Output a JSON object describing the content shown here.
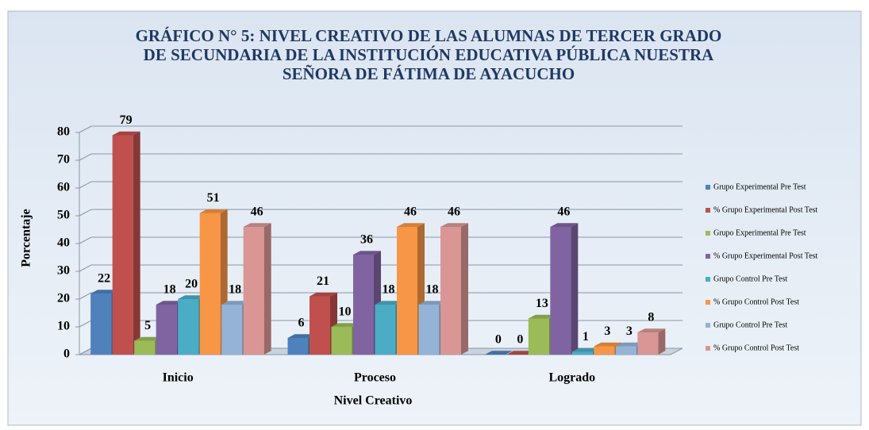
{
  "chart_data": {
    "type": "bar3d",
    "title": [
      "GRÁFICO N° 5: NIVEL CREATIVO DE LAS ALUMNAS DE TERCER GRADO",
      "DE SECUNDARIA DE LA INSTITUCIÓN EDUCATIVA PÚBLICA NUESTRA",
      "SEÑORA DE FÁTIMA DE AYACUCHO"
    ],
    "ylabel": "Porcentaje",
    "xlabel": "Nivel Creativo",
    "categories": [
      "Inicio",
      "Proceso",
      "Logrado"
    ],
    "series": [
      {
        "name": "Grupo Experimental Pre Test",
        "color": "#4f81bd",
        "values": [
          22,
          6,
          0
        ]
      },
      {
        "name": "% Grupo Experimental Post Test",
        "color": "#c0504d",
        "values": [
          79,
          21,
          0
        ]
      },
      {
        "name": "Grupo Experimental Pre Test",
        "color": "#9bbb59",
        "values": [
          5,
          10,
          13
        ]
      },
      {
        "name": "% Grupo Experimental Post Test",
        "color": "#8064a2",
        "values": [
          18,
          36,
          46
        ]
      },
      {
        "name": "Grupo Control Pre Test",
        "color": "#4bacc6",
        "values": [
          20,
          18,
          1
        ]
      },
      {
        "name": "% Grupo Control Post Test",
        "color": "#f79646",
        "values": [
          51,
          46,
          3
        ]
      },
      {
        "name": "Grupo Control Pre Test",
        "color": "#95b3d7",
        "values": [
          18,
          18,
          3
        ]
      },
      {
        "name": "% Grupo Control Post Test",
        "color": "#d99694",
        "values": [
          46,
          46,
          8
        ]
      }
    ],
    "ylim": [
      0,
      80
    ],
    "yticks": [
      0,
      10,
      20,
      30,
      40,
      50,
      60,
      70,
      80
    ],
    "grid": true,
    "legend": "right"
  }
}
